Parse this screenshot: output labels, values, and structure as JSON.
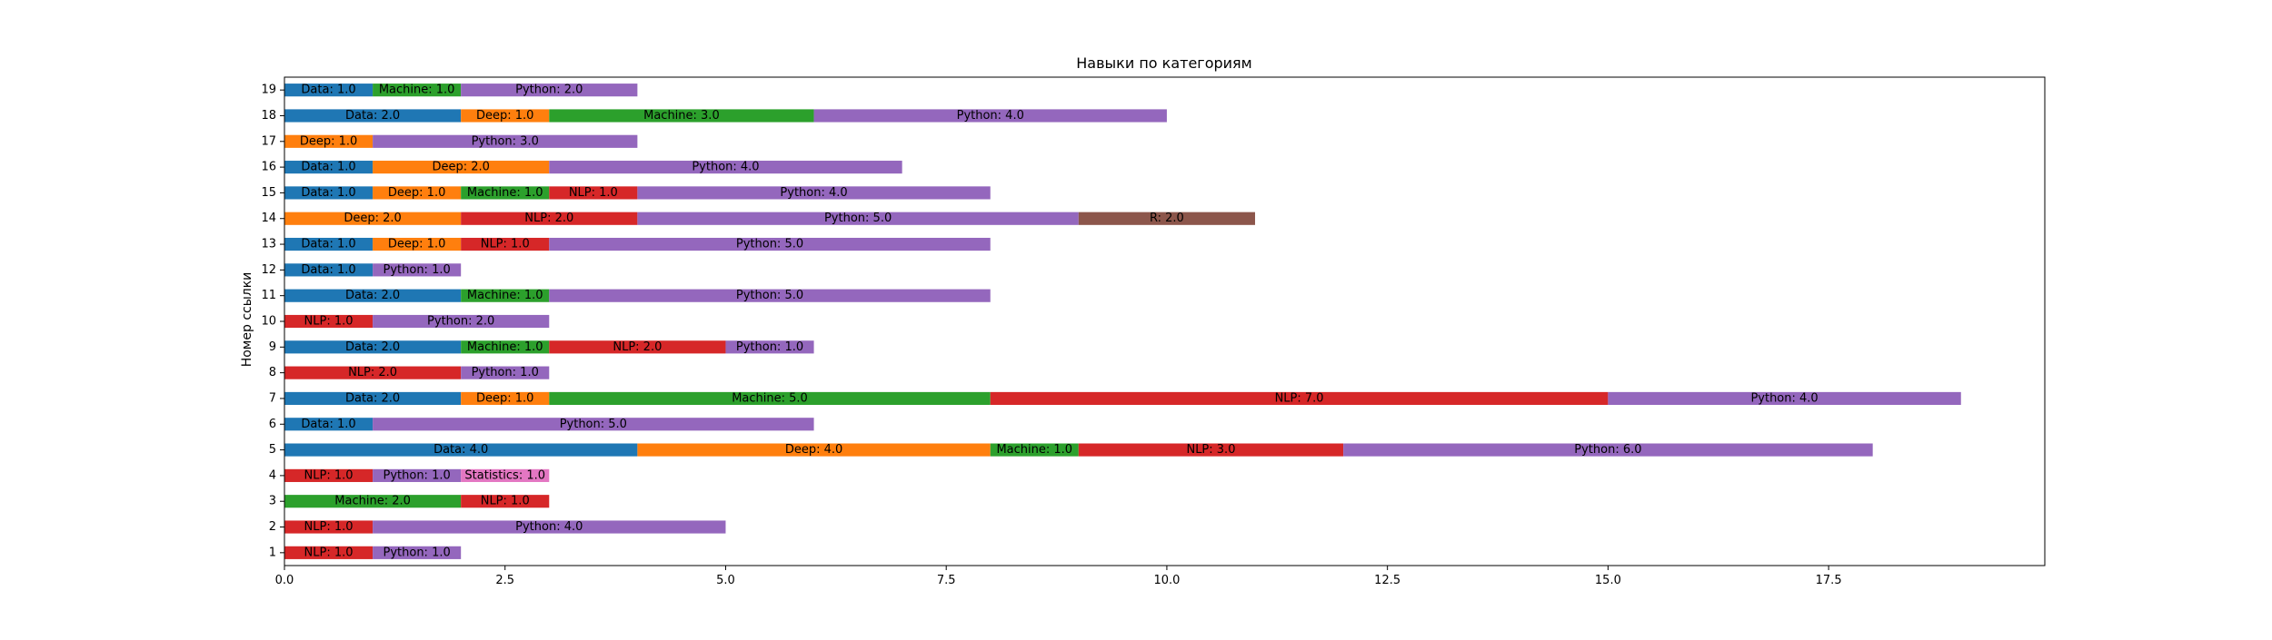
{
  "chart_data": {
    "type": "bar",
    "orientation": "horizontal",
    "stacked": true,
    "title": "Навыки по категориям",
    "xlabel": "",
    "ylabel": "Номер ссылки",
    "xlim": [
      0,
      19.95
    ],
    "xticks": [
      0.0,
      2.5,
      5.0,
      7.5,
      10.0,
      12.5,
      15.0,
      17.5
    ],
    "xtick_labels": [
      "0.0",
      "2.5",
      "5.0",
      "7.5",
      "10.0",
      "12.5",
      "15.0",
      "17.5"
    ],
    "categories": [
      "1",
      "2",
      "3",
      "4",
      "5",
      "6",
      "7",
      "8",
      "9",
      "10",
      "11",
      "12",
      "13",
      "14",
      "15",
      "16",
      "17",
      "18",
      "19"
    ],
    "grid": false,
    "legend": "none",
    "colors": {
      "Data": "#1f77b4",
      "Deep": "#ff7f0e",
      "Machine": "#2ca02c",
      "NLP": "#d62728",
      "Python": "#9467bd",
      "R": "#8c564b",
      "Statistics": "#e377c2"
    },
    "series": [
      {
        "name": "Data",
        "values": [
          0,
          0,
          0,
          0,
          4,
          1,
          2,
          0,
          2,
          0,
          2,
          1,
          1,
          0,
          1,
          1,
          0,
          2,
          1
        ]
      },
      {
        "name": "Deep",
        "values": [
          0,
          0,
          0,
          0,
          4,
          0,
          1,
          0,
          0,
          0,
          0,
          0,
          1,
          2,
          1,
          2,
          1,
          1,
          0
        ]
      },
      {
        "name": "Machine",
        "values": [
          0,
          0,
          2,
          0,
          1,
          0,
          5,
          0,
          1,
          0,
          1,
          0,
          0,
          0,
          1,
          0,
          0,
          3,
          1
        ]
      },
      {
        "name": "NLP",
        "values": [
          1,
          1,
          1,
          1,
          3,
          0,
          7,
          2,
          2,
          1,
          0,
          0,
          1,
          2,
          1,
          0,
          0,
          0,
          0
        ]
      },
      {
        "name": "Python",
        "values": [
          1,
          4,
          0,
          1,
          6,
          5,
          4,
          1,
          1,
          2,
          5,
          1,
          5,
          5,
          4,
          4,
          3,
          4,
          2
        ]
      },
      {
        "name": "R",
        "values": [
          0,
          0,
          0,
          0,
          0,
          0,
          0,
          0,
          0,
          0,
          0,
          0,
          0,
          2,
          0,
          0,
          0,
          0,
          0
        ]
      },
      {
        "name": "Statistics",
        "values": [
          0,
          0,
          0,
          1,
          0,
          0,
          0,
          0,
          0,
          0,
          0,
          0,
          0,
          0,
          0,
          0,
          0,
          0,
          0
        ]
      }
    ]
  }
}
